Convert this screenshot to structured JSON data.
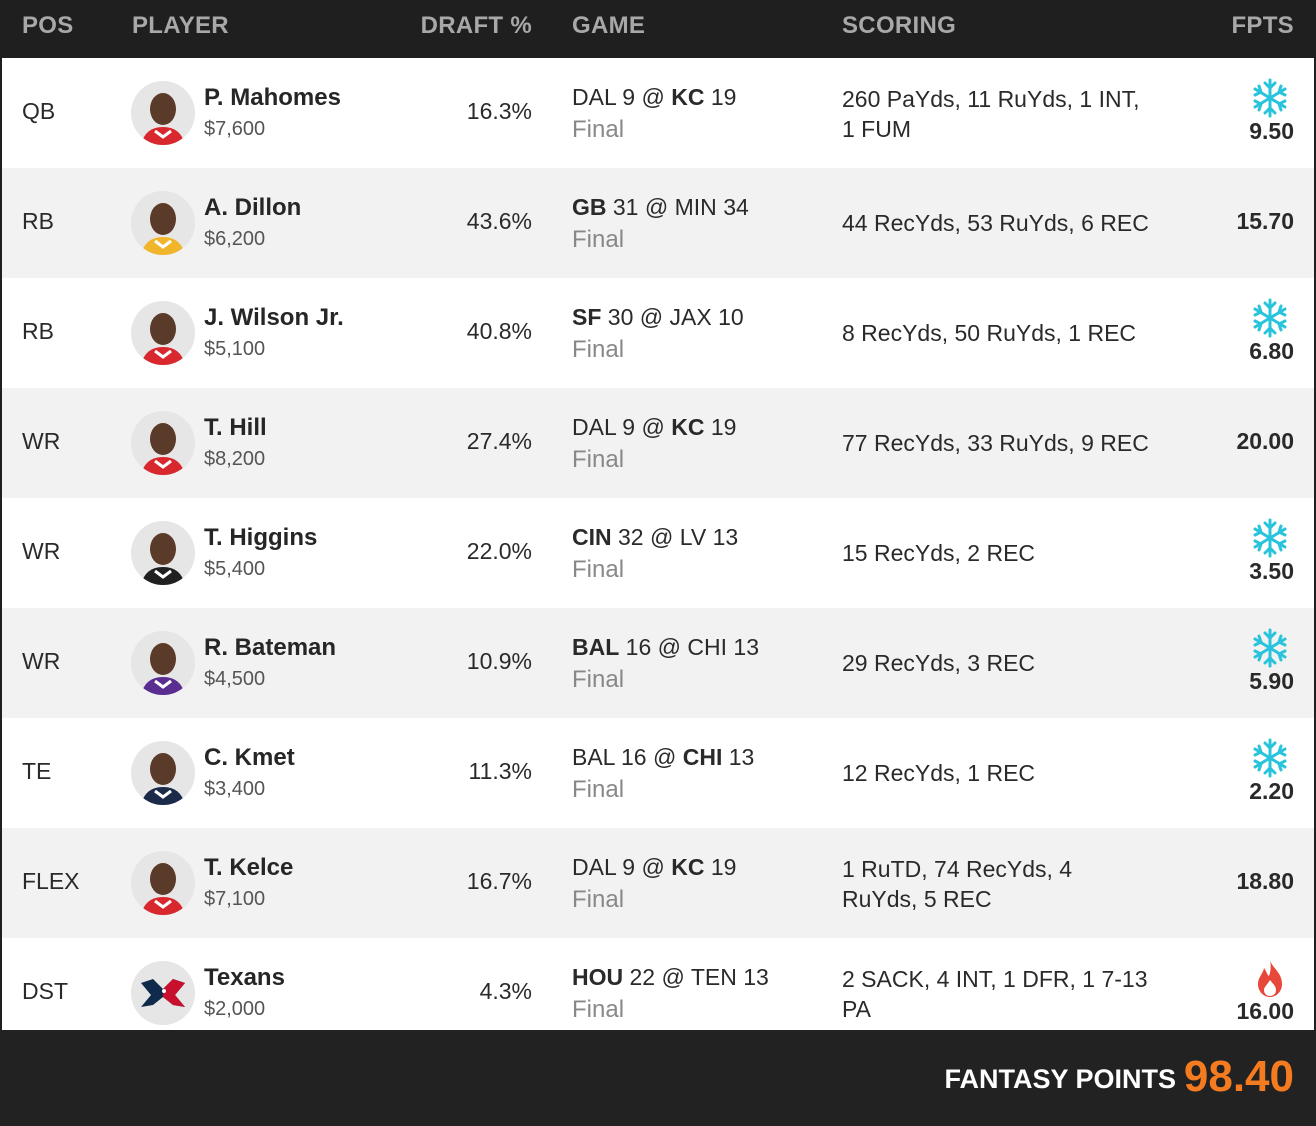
{
  "header": {
    "pos": "POS",
    "player": "PLAYER",
    "draft": "DRAFT %",
    "game": "GAME",
    "scoring": "SCORING",
    "fpts": "FPTS"
  },
  "colors": {
    "accent_orange": "#f47b20",
    "snow_icon": "#29c4dc",
    "fire_icon": "#e8483a",
    "header_bg": "#1f1f1f"
  },
  "rows": [
    {
      "pos": "QB",
      "name": "P. Mahomes",
      "salary": "$7,600",
      "draft": "16.3%",
      "game_away": "DAL",
      "game_away_score": "9",
      "game_at": "@",
      "game_home": "KC",
      "game_home_score": "19",
      "game_bold": "home",
      "status": "Final",
      "scoring": "260 PaYds, 11 RuYds, 1 INT, 1 FUM",
      "fpts": "9.50",
      "icon": "snowflake-icon",
      "avatar": "helmet-red"
    },
    {
      "pos": "RB",
      "name": "A. Dillon",
      "salary": "$6,200",
      "draft": "43.6%",
      "game_away": "GB",
      "game_away_score": "31",
      "game_at": "@",
      "game_home": "MIN",
      "game_home_score": "34",
      "game_bold": "away",
      "status": "Final",
      "scoring": "44 RecYds, 53 RuYds, 6 REC",
      "fpts": "15.70",
      "icon": "",
      "avatar": "helmet-gold"
    },
    {
      "pos": "RB",
      "name": "J. Wilson Jr.",
      "salary": "$5,100",
      "draft": "40.8%",
      "game_away": "SF",
      "game_away_score": "30",
      "game_at": "@",
      "game_home": "JAX",
      "game_home_score": "10",
      "game_bold": "away",
      "status": "Final",
      "scoring": "8 RecYds, 50 RuYds, 1 REC",
      "fpts": "6.80",
      "icon": "snowflake-icon",
      "avatar": "helmet-red"
    },
    {
      "pos": "WR",
      "name": "T. Hill",
      "salary": "$8,200",
      "draft": "27.4%",
      "game_away": "DAL",
      "game_away_score": "9",
      "game_at": "@",
      "game_home": "KC",
      "game_home_score": "19",
      "game_bold": "home",
      "status": "Final",
      "scoring": "77 RecYds, 33 RuYds, 9 REC",
      "fpts": "20.00",
      "icon": "",
      "avatar": "helmet-red"
    },
    {
      "pos": "WR",
      "name": "T. Higgins",
      "salary": "$5,400",
      "draft": "22.0%",
      "game_away": "CIN",
      "game_away_score": "32",
      "game_at": "@",
      "game_home": "LV",
      "game_home_score": "13",
      "game_bold": "away",
      "status": "Final",
      "scoring": "15 RecYds, 2 REC",
      "fpts": "3.50",
      "icon": "snowflake-icon",
      "avatar": "helmet-black"
    },
    {
      "pos": "WR",
      "name": "R. Bateman",
      "salary": "$4,500",
      "draft": "10.9%",
      "game_away": "BAL",
      "game_away_score": "16",
      "game_at": "@",
      "game_home": "CHI",
      "game_home_score": "13",
      "game_bold": "away",
      "status": "Final",
      "scoring": "29 RecYds, 3 REC",
      "fpts": "5.90",
      "icon": "snowflake-icon",
      "avatar": "helmet-purple"
    },
    {
      "pos": "TE",
      "name": "C. Kmet",
      "salary": "$3,400",
      "draft": "11.3%",
      "game_away": "BAL",
      "game_away_score": "16",
      "game_at": "@",
      "game_home": "CHI",
      "game_home_score": "13",
      "game_bold": "home",
      "status": "Final",
      "scoring": "12 RecYds, 1 REC",
      "fpts": "2.20",
      "icon": "snowflake-icon",
      "avatar": "helmet-navy"
    },
    {
      "pos": "FLEX",
      "name": "T. Kelce",
      "salary": "$7,100",
      "draft": "16.7%",
      "game_away": "DAL",
      "game_away_score": "9",
      "game_at": "@",
      "game_home": "KC",
      "game_home_score": "19",
      "game_bold": "home",
      "status": "Final",
      "scoring": "1 RuTD, 74 RecYds, 4 RuYds, 5 REC",
      "fpts": "18.80",
      "icon": "",
      "avatar": "helmet-red"
    },
    {
      "pos": "DST",
      "name": "Texans",
      "salary": "$2,000",
      "draft": "4.3%",
      "game_away": "HOU",
      "game_away_score": "22",
      "game_at": "@",
      "game_home": "TEN",
      "game_home_score": "13",
      "game_bold": "away",
      "status": "Final",
      "scoring": "2 SACK, 4 INT, 1 DFR, 1 7-13 PA",
      "fpts": "16.00",
      "icon": "fire-icon",
      "avatar": "team-logo"
    }
  ],
  "footer": {
    "label": "FANTASY POINTS",
    "total": "98.40"
  }
}
